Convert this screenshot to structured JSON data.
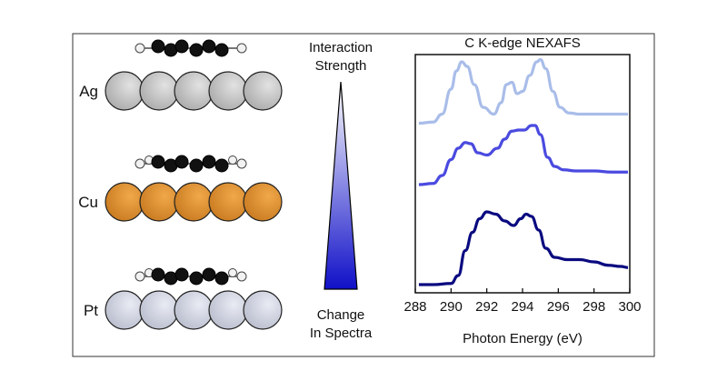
{
  "surfaces": [
    {
      "label": "Ag",
      "atom_color": "#a9a9a9",
      "atom_highlight": "#e2e2e2"
    },
    {
      "label": "Cu",
      "atom_color": "#c8791f",
      "atom_highlight": "#f0a84a"
    },
    {
      "label": "Pt",
      "atom_color": "#b8bccc",
      "atom_highlight": "#e9ebf4"
    }
  ],
  "gradient": {
    "top_label_line1": "Interaction",
    "top_label_line2": "Strength",
    "bottom_label_line1": "Change",
    "bottom_label_line2": "In Spectra",
    "color_top": "#ffffff",
    "color_bottom": "#1010c8"
  },
  "chart_data": {
    "type": "line",
    "title": "C K-edge NEXAFS",
    "xlabel": "Photon Energy (eV)",
    "ylabel": "",
    "xlim": [
      288,
      300
    ],
    "xticks": [
      288,
      290,
      292,
      294,
      296,
      298,
      300
    ],
    "yticks_shown": false,
    "series": [
      {
        "color": "#a9bde9",
        "x": [
          288.2,
          289.0,
          289.5,
          290.0,
          290.3,
          290.6,
          290.9,
          291.3,
          291.8,
          292.4,
          292.8,
          293.1,
          293.4,
          293.7,
          294.0,
          294.4,
          294.8,
          295.0,
          295.3,
          295.7,
          296.1,
          296.6,
          297.2,
          298.0,
          299.0,
          299.9
        ],
        "y": [
          0.73,
          0.735,
          0.77,
          0.88,
          0.96,
          1.0,
          0.98,
          0.9,
          0.8,
          0.77,
          0.82,
          0.9,
          0.91,
          0.86,
          0.87,
          0.94,
          1.0,
          1.01,
          0.97,
          0.87,
          0.8,
          0.775,
          0.77,
          0.77,
          0.77,
          0.77
        ]
      },
      {
        "color": "#4a4ae0",
        "x": [
          288.2,
          289.0,
          289.5,
          290.0,
          290.4,
          290.8,
          291.1,
          291.5,
          292.0,
          292.6,
          293.0,
          293.4,
          293.8,
          294.1,
          294.5,
          294.7,
          295.0,
          295.4,
          295.8,
          296.3,
          297.0,
          298.0,
          299.0,
          299.9
        ],
        "y": [
          0.46,
          0.465,
          0.5,
          0.57,
          0.62,
          0.645,
          0.64,
          0.6,
          0.59,
          0.62,
          0.66,
          0.695,
          0.7,
          0.7,
          0.72,
          0.72,
          0.68,
          0.58,
          0.54,
          0.525,
          0.52,
          0.52,
          0.515,
          0.515
        ]
      },
      {
        "color": "#0a0a80",
        "x": [
          288.2,
          289.0,
          290.0,
          290.4,
          290.8,
          291.2,
          291.6,
          292.0,
          292.5,
          293.0,
          293.5,
          293.9,
          294.2,
          294.5,
          294.9,
          295.3,
          295.8,
          296.5,
          297.2,
          298.0,
          298.8,
          299.5,
          299.9
        ],
        "y": [
          0.02,
          0.02,
          0.025,
          0.06,
          0.17,
          0.25,
          0.31,
          0.34,
          0.33,
          0.3,
          0.28,
          0.31,
          0.33,
          0.32,
          0.26,
          0.18,
          0.14,
          0.13,
          0.13,
          0.12,
          0.105,
          0.1,
          0.095
        ]
      }
    ]
  }
}
